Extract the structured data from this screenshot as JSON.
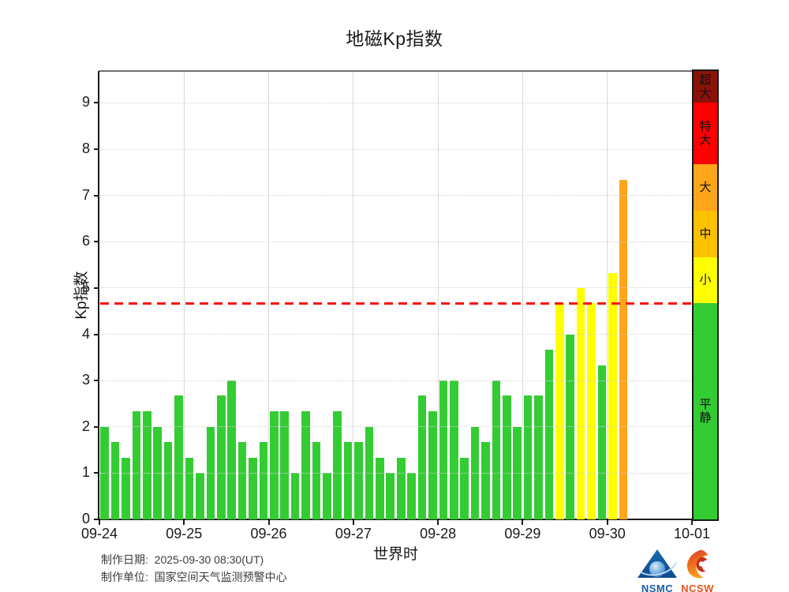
{
  "title": "地磁Kp指数",
  "y_axis": {
    "label": "Kp指数",
    "ticks": [
      "0",
      "1",
      "2",
      "3",
      "4",
      "5",
      "6",
      "7",
      "8",
      "9"
    ]
  },
  "x_axis": {
    "label": "世界时",
    "ticks": [
      "09-24",
      "09-25",
      "09-26",
      "09-27",
      "09-28",
      "09-29",
      "09-30",
      "10-01"
    ]
  },
  "footer": {
    "line1": "制作日期:  2025-09-30 08:30(UT)",
    "line2": "制作单位:  国家空间天气监测预警中心"
  },
  "logos": {
    "nsmc_text": "NSMC",
    "ncsw_text": "NCSW",
    "nsmc_color": "#155ca5",
    "ncsw_color": "#e8531f"
  },
  "scale_bar": {
    "segments": [
      {
        "label": "超大",
        "kp_from": 9.0,
        "kp_to": 9.69,
        "color": "#8b1209"
      },
      {
        "label": "特大",
        "kp_from": 7.67,
        "kp_to": 9.0,
        "color": "#fe0000"
      },
      {
        "label": "大",
        "kp_from": 6.67,
        "kp_to": 7.67,
        "color": "#ffa519"
      },
      {
        "label": "中",
        "kp_from": 5.67,
        "kp_to": 6.67,
        "color": "#ffc000"
      },
      {
        "label": "小",
        "kp_from": 4.67,
        "kp_to": 5.67,
        "color": "#ffff00"
      },
      {
        "label": "平静",
        "kp_from": 0.0,
        "kp_to": 4.67,
        "color": "#33cc33"
      }
    ]
  },
  "chart_data": {
    "type": "bar",
    "title": "地磁Kp指数",
    "xlabel": "世界时",
    "ylabel": "Kp指数",
    "ylim": [
      0,
      9.69
    ],
    "grid": true,
    "bars_per_day": 8,
    "bar_interval_hours": 3,
    "threshold_kp": 4.67,
    "threshold_color": "#fb0d09",
    "x_tick_labels": [
      "09-24",
      "09-25",
      "09-26",
      "09-27",
      "09-28",
      "09-29",
      "09-30",
      "10-01"
    ],
    "days": [
      {
        "date": "09-24",
        "kp": [
          2.0,
          1.67,
          1.33,
          2.33,
          2.33,
          2.0,
          1.67,
          2.67
        ]
      },
      {
        "date": "09-25",
        "kp": [
          1.33,
          1.0,
          2.0,
          2.67,
          3.0,
          1.67,
          1.33,
          1.67
        ]
      },
      {
        "date": "09-26",
        "kp": [
          2.33,
          2.33,
          1.0,
          2.33,
          1.67,
          1.0,
          2.33,
          1.67
        ]
      },
      {
        "date": "09-27",
        "kp": [
          1.67,
          2.0,
          1.33,
          1.0,
          1.33,
          1.0,
          2.67,
          2.33
        ]
      },
      {
        "date": "09-28",
        "kp": [
          3.0,
          3.0,
          1.33,
          2.0,
          1.67,
          3.0,
          2.67,
          2.0
        ]
      },
      {
        "date": "09-29",
        "kp": [
          2.67,
          2.67,
          3.67,
          4.67,
          4.0,
          5.0,
          4.67,
          3.33
        ]
      },
      {
        "date": "09-30",
        "kp": [
          5.33,
          7.33
        ]
      }
    ]
  }
}
